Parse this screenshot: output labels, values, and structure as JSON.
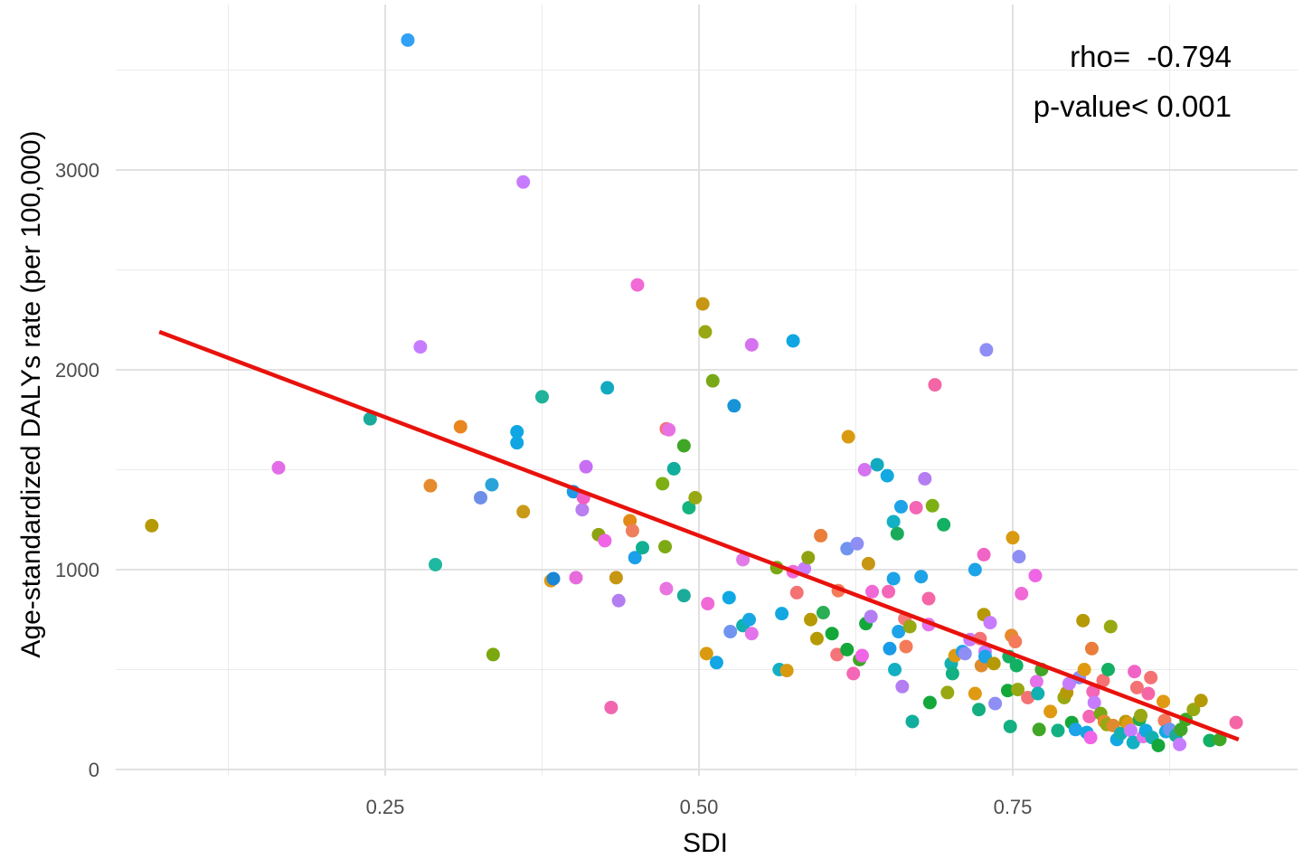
{
  "chart_data": {
    "type": "scatter",
    "xlabel": "SDI",
    "ylabel": "Age-standardized DALYs rate (per 100,000)",
    "xlim": [
      0.02,
      0.97
    ],
    "ylim": [
      -30,
      3800
    ],
    "x_ticks": [
      {
        "value": 0.25,
        "label": "0.25"
      },
      {
        "value": 0.5,
        "label": "0.50"
      },
      {
        "value": 0.75,
        "label": "0.75"
      }
    ],
    "x_minor": [
      0.125,
      0.375,
      0.625,
      0.875
    ],
    "y_ticks": [
      {
        "value": 0,
        "label": "0"
      },
      {
        "value": 1000,
        "label": "1000"
      },
      {
        "value": 2000,
        "label": "2000"
      },
      {
        "value": 3000,
        "label": "3000"
      }
    ],
    "y_minor": [
      500,
      1500,
      2500,
      3500
    ],
    "grid": true,
    "legend": "none",
    "annotations": {
      "rho": "rho=  -0.794",
      "pvalue": "p-value< 0.001"
    },
    "trend_line": {
      "color": "#e8120c",
      "x": [
        0.07,
        0.93
      ],
      "y": [
        2190,
        150
      ]
    },
    "points": [
      {
        "x": 0.064,
        "y": 1220,
        "color": "#b59a05"
      },
      {
        "x": 0.165,
        "y": 1510,
        "color": "#e26de6"
      },
      {
        "x": 0.238,
        "y": 1755,
        "color": "#1aab9b"
      },
      {
        "x": 0.268,
        "y": 3650,
        "color": "#31a0f5"
      },
      {
        "x": 0.278,
        "y": 2115,
        "color": "#c77cff"
      },
      {
        "x": 0.286,
        "y": 1420,
        "color": "#e68a2e"
      },
      {
        "x": 0.29,
        "y": 1025,
        "color": "#1fb8a0"
      },
      {
        "x": 0.31,
        "y": 1715,
        "color": "#e88620"
      },
      {
        "x": 0.326,
        "y": 1360,
        "color": "#6d8fe8"
      },
      {
        "x": 0.335,
        "y": 1425,
        "color": "#2aa3d9"
      },
      {
        "x": 0.336,
        "y": 575,
        "color": "#7aa80e"
      },
      {
        "x": 0.355,
        "y": 1690,
        "color": "#10a6e3"
      },
      {
        "x": 0.355,
        "y": 1635,
        "color": "#10a6e3"
      },
      {
        "x": 0.36,
        "y": 2940,
        "color": "#c77cff"
      },
      {
        "x": 0.36,
        "y": 1290,
        "color": "#c89a18"
      },
      {
        "x": 0.375,
        "y": 1865,
        "color": "#20b29a"
      },
      {
        "x": 0.382,
        "y": 945,
        "color": "#e09a12"
      },
      {
        "x": 0.384,
        "y": 955,
        "color": "#1a86d4"
      },
      {
        "x": 0.4,
        "y": 1390,
        "color": "#1d9be8"
      },
      {
        "x": 0.402,
        "y": 960,
        "color": "#e76bdb"
      },
      {
        "x": 0.407,
        "y": 1300,
        "color": "#ba7ef0"
      },
      {
        "x": 0.408,
        "y": 1360,
        "color": "#f25ec8"
      },
      {
        "x": 0.41,
        "y": 1515,
        "color": "#c86ef2"
      },
      {
        "x": 0.42,
        "y": 1175,
        "color": "#8fa312"
      },
      {
        "x": 0.425,
        "y": 1145,
        "color": "#f064e6"
      },
      {
        "x": 0.427,
        "y": 1910,
        "color": "#12aabf"
      },
      {
        "x": 0.43,
        "y": 310,
        "color": "#f067b0"
      },
      {
        "x": 0.434,
        "y": 960,
        "color": "#c79612"
      },
      {
        "x": 0.436,
        "y": 845,
        "color": "#b47ef2"
      },
      {
        "x": 0.445,
        "y": 1245,
        "color": "#e38a16"
      },
      {
        "x": 0.447,
        "y": 1195,
        "color": "#ef7f5c"
      },
      {
        "x": 0.449,
        "y": 1060,
        "color": "#1aa0e8"
      },
      {
        "x": 0.451,
        "y": 2425,
        "color": "#f16ad5"
      },
      {
        "x": 0.455,
        "y": 1110,
        "color": "#0fb094"
      },
      {
        "x": 0.471,
        "y": 1430,
        "color": "#7daf12"
      },
      {
        "x": 0.473,
        "y": 1115,
        "color": "#7daa14"
      },
      {
        "x": 0.474,
        "y": 1705,
        "color": "#f4717a"
      },
      {
        "x": 0.476,
        "y": 1700,
        "color": "#e771e4"
      },
      {
        "x": 0.474,
        "y": 905,
        "color": "#e875e0"
      },
      {
        "x": 0.48,
        "y": 1505,
        "color": "#12ae9d"
      },
      {
        "x": 0.488,
        "y": 1620,
        "color": "#40a626"
      },
      {
        "x": 0.488,
        "y": 870,
        "color": "#1aab9b"
      },
      {
        "x": 0.492,
        "y": 1310,
        "color": "#14b47e"
      },
      {
        "x": 0.497,
        "y": 1360,
        "color": "#98a812"
      },
      {
        "x": 0.503,
        "y": 2330,
        "color": "#c79612"
      },
      {
        "x": 0.505,
        "y": 2190,
        "color": "#98a812"
      },
      {
        "x": 0.506,
        "y": 580,
        "color": "#d99a10"
      },
      {
        "x": 0.507,
        "y": 830,
        "color": "#f069d6"
      },
      {
        "x": 0.511,
        "y": 1945,
        "color": "#78a818"
      },
      {
        "x": 0.514,
        "y": 535,
        "color": "#12a6e6"
      },
      {
        "x": 0.524,
        "y": 860,
        "color": "#10a8e4"
      },
      {
        "x": 0.525,
        "y": 690,
        "color": "#6f95f0"
      },
      {
        "x": 0.528,
        "y": 1820,
        "color": "#1993d8"
      },
      {
        "x": 0.535,
        "y": 1050,
        "color": "#e27ae8"
      },
      {
        "x": 0.535,
        "y": 720,
        "color": "#12b0b0"
      },
      {
        "x": 0.54,
        "y": 750,
        "color": "#17a8e4"
      },
      {
        "x": 0.542,
        "y": 2125,
        "color": "#d572f0"
      },
      {
        "x": 0.542,
        "y": 680,
        "color": "#e472ea"
      },
      {
        "x": 0.562,
        "y": 1010,
        "color": "#7aa814"
      },
      {
        "x": 0.564,
        "y": 500,
        "color": "#12b0c2"
      },
      {
        "x": 0.566,
        "y": 780,
        "color": "#12a8e2"
      },
      {
        "x": 0.57,
        "y": 495,
        "color": "#d99a10"
      },
      {
        "x": 0.575,
        "y": 2145,
        "color": "#10a6e3"
      },
      {
        "x": 0.575,
        "y": 990,
        "color": "#f069d6"
      },
      {
        "x": 0.578,
        "y": 885,
        "color": "#f47274"
      },
      {
        "x": 0.584,
        "y": 1005,
        "color": "#c77cff"
      },
      {
        "x": 0.587,
        "y": 1060,
        "color": "#8fa312"
      },
      {
        "x": 0.589,
        "y": 750,
        "color": "#b59a05"
      },
      {
        "x": 0.594,
        "y": 655,
        "color": "#b59a05"
      },
      {
        "x": 0.597,
        "y": 1170,
        "color": "#ea7d3a"
      },
      {
        "x": 0.599,
        "y": 785,
        "color": "#2aae55"
      },
      {
        "x": 0.606,
        "y": 680,
        "color": "#14a83a"
      },
      {
        "x": 0.61,
        "y": 575,
        "color": "#f4747a"
      },
      {
        "x": 0.611,
        "y": 895,
        "color": "#f47a5a"
      },
      {
        "x": 0.618,
        "y": 1105,
        "color": "#6f95f0"
      },
      {
        "x": 0.618,
        "y": 600,
        "color": "#14a83a"
      },
      {
        "x": 0.619,
        "y": 1665,
        "color": "#d99a10"
      },
      {
        "x": 0.623,
        "y": 480,
        "color": "#f466b6"
      },
      {
        "x": 0.626,
        "y": 1130,
        "color": "#8e8ef5"
      },
      {
        "x": 0.628,
        "y": 550,
        "color": "#40a626"
      },
      {
        "x": 0.63,
        "y": 570,
        "color": "#f064e6"
      },
      {
        "x": 0.633,
        "y": 730,
        "color": "#14a83a"
      },
      {
        "x": 0.635,
        "y": 1030,
        "color": "#c79612"
      },
      {
        "x": 0.637,
        "y": 765,
        "color": "#b47ef2"
      },
      {
        "x": 0.638,
        "y": 890,
        "color": "#f069d6"
      },
      {
        "x": 0.632,
        "y": 1500,
        "color": "#d572f0"
      },
      {
        "x": 0.642,
        "y": 1525,
        "color": "#12aabf"
      },
      {
        "x": 0.65,
        "y": 1470,
        "color": "#12a8e2"
      },
      {
        "x": 0.651,
        "y": 890,
        "color": "#f466b6"
      },
      {
        "x": 0.652,
        "y": 605,
        "color": "#1a9be8"
      },
      {
        "x": 0.655,
        "y": 1240,
        "color": "#12b0c2"
      },
      {
        "x": 0.655,
        "y": 955,
        "color": "#1da3e8"
      },
      {
        "x": 0.656,
        "y": 500,
        "color": "#12b0c2"
      },
      {
        "x": 0.658,
        "y": 1180,
        "color": "#1aab5a"
      },
      {
        "x": 0.659,
        "y": 690,
        "color": "#1da3e8"
      },
      {
        "x": 0.661,
        "y": 1315,
        "color": "#1da3e8"
      },
      {
        "x": 0.662,
        "y": 415,
        "color": "#b47ef2"
      },
      {
        "x": 0.664,
        "y": 755,
        "color": "#f47a7a"
      },
      {
        "x": 0.665,
        "y": 615,
        "color": "#f47a5a"
      },
      {
        "x": 0.668,
        "y": 715,
        "color": "#98a812"
      },
      {
        "x": 0.67,
        "y": 240,
        "color": "#12ae9d"
      },
      {
        "x": 0.673,
        "y": 1310,
        "color": "#f466b6"
      },
      {
        "x": 0.677,
        "y": 965,
        "color": "#1da3e8"
      },
      {
        "x": 0.68,
        "y": 1455,
        "color": "#b47ef2"
      },
      {
        "x": 0.683,
        "y": 855,
        "color": "#f466a6"
      },
      {
        "x": 0.683,
        "y": 725,
        "color": "#e472ea"
      },
      {
        "x": 0.684,
        "y": 335,
        "color": "#14a83a"
      },
      {
        "x": 0.686,
        "y": 1320,
        "color": "#7daf12"
      },
      {
        "x": 0.688,
        "y": 1925,
        "color": "#f466a6"
      },
      {
        "x": 0.695,
        "y": 1225,
        "color": "#12b062"
      },
      {
        "x": 0.698,
        "y": 385,
        "color": "#98a812"
      },
      {
        "x": 0.701,
        "y": 530,
        "color": "#12b0b0"
      },
      {
        "x": 0.702,
        "y": 480,
        "color": "#12b083"
      },
      {
        "x": 0.704,
        "y": 570,
        "color": "#e09a12"
      },
      {
        "x": 0.71,
        "y": 590,
        "color": "#1da3e8"
      },
      {
        "x": 0.712,
        "y": 580,
        "color": "#8e8ef5"
      },
      {
        "x": 0.716,
        "y": 650,
        "color": "#c77cff"
      },
      {
        "x": 0.72,
        "y": 1000,
        "color": "#1da3e8"
      },
      {
        "x": 0.72,
        "y": 380,
        "color": "#e09a12"
      },
      {
        "x": 0.723,
        "y": 300,
        "color": "#14ae80"
      },
      {
        "x": 0.724,
        "y": 655,
        "color": "#f47274"
      },
      {
        "x": 0.725,
        "y": 520,
        "color": "#e08a2e"
      },
      {
        "x": 0.727,
        "y": 1075,
        "color": "#f064c6"
      },
      {
        "x": 0.728,
        "y": 590,
        "color": "#c77cff"
      },
      {
        "x": 0.728,
        "y": 565,
        "color": "#1da3e8"
      },
      {
        "x": 0.727,
        "y": 775,
        "color": "#b59a05"
      },
      {
        "x": 0.729,
        "y": 2100,
        "color": "#8e8ef5"
      },
      {
        "x": 0.732,
        "y": 735,
        "color": "#c77cff"
      },
      {
        "x": 0.735,
        "y": 530,
        "color": "#b59a05"
      },
      {
        "x": 0.736,
        "y": 330,
        "color": "#8e8ef5"
      },
      {
        "x": 0.746,
        "y": 395,
        "color": "#14a83a"
      },
      {
        "x": 0.747,
        "y": 565,
        "color": "#12b062"
      },
      {
        "x": 0.748,
        "y": 215,
        "color": "#12b083"
      },
      {
        "x": 0.749,
        "y": 670,
        "color": "#e68a2e"
      },
      {
        "x": 0.75,
        "y": 1160,
        "color": "#d99a10"
      },
      {
        "x": 0.752,
        "y": 640,
        "color": "#f47a5a"
      },
      {
        "x": 0.753,
        "y": 520,
        "color": "#12b062"
      },
      {
        "x": 0.754,
        "y": 400,
        "color": "#98a812"
      },
      {
        "x": 0.755,
        "y": 1065,
        "color": "#8e8ef5"
      },
      {
        "x": 0.757,
        "y": 880,
        "color": "#f069d6"
      },
      {
        "x": 0.762,
        "y": 360,
        "color": "#f47274"
      },
      {
        "x": 0.768,
        "y": 970,
        "color": "#f064e6"
      },
      {
        "x": 0.769,
        "y": 440,
        "color": "#e472ea"
      },
      {
        "x": 0.77,
        "y": 380,
        "color": "#12b0b0"
      },
      {
        "x": 0.771,
        "y": 200,
        "color": "#40a626"
      },
      {
        "x": 0.773,
        "y": 500,
        "color": "#40a626"
      },
      {
        "x": 0.78,
        "y": 290,
        "color": "#e09a12"
      },
      {
        "x": 0.786,
        "y": 195,
        "color": "#12b083"
      },
      {
        "x": 0.791,
        "y": 360,
        "color": "#98a812"
      },
      {
        "x": 0.793,
        "y": 385,
        "color": "#b59a05"
      },
      {
        "x": 0.795,
        "y": 430,
        "color": "#c77cff"
      },
      {
        "x": 0.797,
        "y": 235,
        "color": "#14a83a"
      },
      {
        "x": 0.8,
        "y": 200,
        "color": "#1da3e8"
      },
      {
        "x": 0.803,
        "y": 460,
        "color": "#8e8ef5"
      },
      {
        "x": 0.806,
        "y": 745,
        "color": "#b59a05"
      },
      {
        "x": 0.807,
        "y": 500,
        "color": "#e09a12"
      },
      {
        "x": 0.809,
        "y": 185,
        "color": "#12a8e2"
      },
      {
        "x": 0.811,
        "y": 265,
        "color": "#f466b6"
      },
      {
        "x": 0.812,
        "y": 160,
        "color": "#f064e6"
      },
      {
        "x": 0.813,
        "y": 605,
        "color": "#ea7d3a"
      },
      {
        "x": 0.814,
        "y": 390,
        "color": "#f466b6"
      },
      {
        "x": 0.815,
        "y": 335,
        "color": "#c77cff"
      },
      {
        "x": 0.82,
        "y": 280,
        "color": "#7aa814"
      },
      {
        "x": 0.822,
        "y": 445,
        "color": "#f47274"
      },
      {
        "x": 0.823,
        "y": 240,
        "color": "#e68a2e"
      },
      {
        "x": 0.825,
        "y": 225,
        "color": "#98a812"
      },
      {
        "x": 0.826,
        "y": 500,
        "color": "#12b062"
      },
      {
        "x": 0.828,
        "y": 715,
        "color": "#98a812"
      },
      {
        "x": 0.83,
        "y": 220,
        "color": "#e08a2e"
      },
      {
        "x": 0.833,
        "y": 150,
        "color": "#12a8e2"
      },
      {
        "x": 0.836,
        "y": 180,
        "color": "#12b0b0"
      },
      {
        "x": 0.84,
        "y": 240,
        "color": "#b59a05"
      },
      {
        "x": 0.842,
        "y": 230,
        "color": "#e09a12"
      },
      {
        "x": 0.844,
        "y": 195,
        "color": "#c77cff"
      },
      {
        "x": 0.846,
        "y": 135,
        "color": "#12b0c2"
      },
      {
        "x": 0.847,
        "y": 490,
        "color": "#f064c6"
      },
      {
        "x": 0.849,
        "y": 410,
        "color": "#f47274"
      },
      {
        "x": 0.851,
        "y": 250,
        "color": "#1aab5a"
      },
      {
        "x": 0.852,
        "y": 270,
        "color": "#98a812"
      },
      {
        "x": 0.854,
        "y": 165,
        "color": "#e472ea"
      },
      {
        "x": 0.856,
        "y": 195,
        "color": "#12a8e2"
      },
      {
        "x": 0.858,
        "y": 380,
        "color": "#f466a6"
      },
      {
        "x": 0.86,
        "y": 460,
        "color": "#f47274"
      },
      {
        "x": 0.861,
        "y": 160,
        "color": "#12b0b0"
      },
      {
        "x": 0.866,
        "y": 120,
        "color": "#14a83a"
      },
      {
        "x": 0.87,
        "y": 340,
        "color": "#e09a12"
      },
      {
        "x": 0.871,
        "y": 245,
        "color": "#f47a5a"
      },
      {
        "x": 0.872,
        "y": 190,
        "color": "#12a8e2"
      },
      {
        "x": 0.875,
        "y": 200,
        "color": "#6f95f0"
      },
      {
        "x": 0.88,
        "y": 170,
        "color": "#1aab9b"
      },
      {
        "x": 0.883,
        "y": 125,
        "color": "#c77cff"
      },
      {
        "x": 0.884,
        "y": 200,
        "color": "#40a626"
      },
      {
        "x": 0.888,
        "y": 250,
        "color": "#40a626"
      },
      {
        "x": 0.894,
        "y": 300,
        "color": "#98a812"
      },
      {
        "x": 0.9,
        "y": 345,
        "color": "#b59a05"
      },
      {
        "x": 0.907,
        "y": 145,
        "color": "#12b062"
      },
      {
        "x": 0.915,
        "y": 150,
        "color": "#40a626"
      },
      {
        "x": 0.928,
        "y": 235,
        "color": "#f466a6"
      }
    ]
  }
}
